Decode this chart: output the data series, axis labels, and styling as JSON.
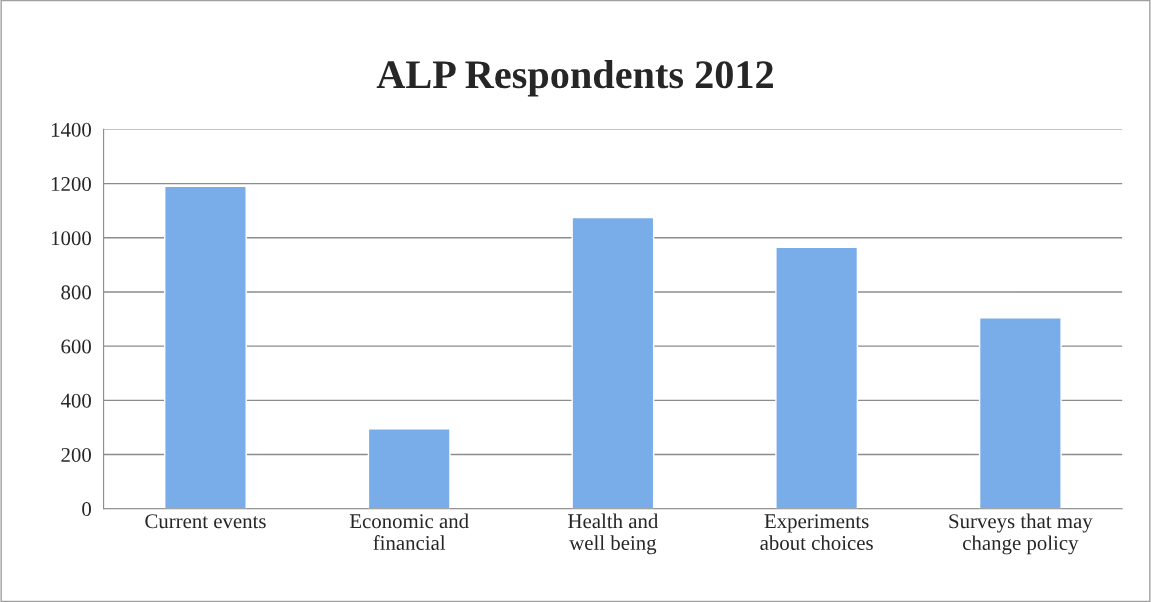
{
  "chart_data": {
    "type": "bar",
    "title": "ALP Respondents 2012",
    "categories": [
      "Current events",
      "Economic and financial",
      "Health and well being",
      "Experiments about choices",
      "Surveys that may change policy"
    ],
    "values": [
      1190,
      295,
      1075,
      965,
      705
    ],
    "color": "#79ade9",
    "ylim": [
      0,
      1400
    ],
    "yticks": [
      0,
      200,
      400,
      600,
      800,
      1000,
      1200,
      1400
    ],
    "grid": "y",
    "legend": false
  }
}
